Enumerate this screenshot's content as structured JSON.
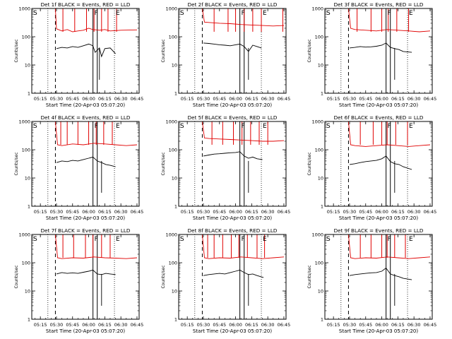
{
  "x_tick_labels": [
    "05:15",
    "05:30",
    "05:45",
    "06:00",
    "06:15",
    "06:30",
    "06:45"
  ],
  "y_tick_labels": [
    "1",
    "10",
    "100",
    "1000"
  ],
  "colors": {
    "events": "#000000",
    "lld": "#e00000",
    "axes": "#000000",
    "background": "#ffffff"
  },
  "chart_data": [
    {
      "type": "line",
      "title": "Det 1f  BLACK = Events, RED = LLD",
      "xlabel": "Start Time (20-Apr-03 05:07:20)",
      "ylabel": "Counts/sec",
      "yscale": "log",
      "ylim": [
        1,
        1000
      ],
      "xlim": [
        "05:07",
        "06:47"
      ],
      "markers": {
        "S": "05:07",
        "F": "06:04",
        "E": "06:24"
      },
      "vlines_dotted": [
        "05:22",
        "06:24"
      ],
      "vlines_dashed": [
        "05:29"
      ],
      "vlines_solid": [
        "06:04",
        "06:08"
      ],
      "series": [
        {
          "name": "Events",
          "color": "#000000",
          "x": [
            "05:30",
            "05:35",
            "05:40",
            "05:45",
            "05:50",
            "05:55",
            "06:00",
            "06:02",
            "06:04",
            "06:06",
            "06:10",
            "06:12",
            "06:15",
            "06:20",
            "06:25"
          ],
          "y": [
            38,
            42,
            40,
            45,
            42,
            48,
            55,
            52,
            47,
            28,
            40,
            20,
            38,
            40,
            25
          ]
        },
        {
          "name": "LLD",
          "color": "#e00000",
          "x": [
            "05:29",
            "05:30",
            "05:35",
            "05:40",
            "05:45",
            "05:50",
            "05:55",
            "06:00",
            "06:04",
            "06:10",
            "06:15",
            "06:20",
            "06:30",
            "06:45"
          ],
          "y": [
            1000,
            190,
            160,
            180,
            150,
            160,
            170,
            200,
            180,
            170,
            180,
            160,
            170,
            175
          ],
          "spikes": [
            "05:36",
            "05:47",
            "05:58",
            "06:05",
            "06:12",
            "06:18",
            "06:26"
          ]
        }
      ]
    },
    {
      "type": "line",
      "title": "Det 2f  BLACK = Events, RED = LLD",
      "xlabel": "Start Time (20-Apr-03 05:07:20)",
      "ylabel": "Counts/sec",
      "yscale": "log",
      "ylim": [
        1,
        1000
      ],
      "xlim": [
        "05:07",
        "06:47"
      ],
      "markers": {
        "S": "05:07",
        "F": "06:04",
        "E": "06:24"
      },
      "vlines_dotted": [
        "05:22",
        "06:24"
      ],
      "vlines_dashed": [
        "05:29"
      ],
      "vlines_solid": [
        "06:04",
        "06:08"
      ],
      "series": [
        {
          "name": "Events",
          "color": "#000000",
          "x": [
            "05:30",
            "05:35",
            "05:40",
            "05:45",
            "05:50",
            "05:55",
            "06:00",
            "06:04",
            "06:08",
            "06:12",
            "06:16",
            "06:20",
            "06:24"
          ],
          "y": [
            60,
            58,
            55,
            52,
            50,
            48,
            52,
            55,
            45,
            30,
            50,
            45,
            40
          ]
        },
        {
          "name": "LLD",
          "color": "#e00000",
          "x": [
            "05:29",
            "05:31",
            "05:35",
            "05:45",
            "05:55",
            "06:05",
            "06:15",
            "06:25",
            "06:35",
            "06:45"
          ],
          "y": [
            1000,
            330,
            320,
            300,
            290,
            270,
            260,
            250,
            240,
            250
          ],
          "spikes": [
            "05:40",
            "05:53",
            "06:00",
            "06:08",
            "06:16",
            "06:24",
            "06:44"
          ]
        }
      ]
    },
    {
      "type": "line",
      "title": "Det 3f  BLACK = Events, RED = LLD",
      "xlabel": "Start Time (20-Apr-03 05:07:20)",
      "ylabel": "Counts/sec",
      "yscale": "log",
      "ylim": [
        1,
        1000
      ],
      "xlim": [
        "05:07",
        "06:47"
      ],
      "markers": {
        "S": "05:07",
        "F": "06:04",
        "E": "06:24"
      },
      "vlines_dotted": [
        "05:22",
        "06:24"
      ],
      "vlines_dashed": [
        "05:29"
      ],
      "vlines_solid": [
        "06:04",
        "06:08"
      ],
      "series": [
        {
          "name": "Events",
          "color": "#000000",
          "x": [
            "05:30",
            "05:35",
            "05:40",
            "05:45",
            "05:50",
            "05:55",
            "06:00",
            "06:04",
            "06:08",
            "06:12",
            "06:16",
            "06:20",
            "06:28"
          ],
          "y": [
            40,
            42,
            45,
            43,
            44,
            46,
            50,
            60,
            42,
            38,
            35,
            30,
            28
          ]
        },
        {
          "name": "LLD",
          "color": "#e00000",
          "x": [
            "05:29",
            "05:31",
            "05:35",
            "05:45",
            "05:55",
            "06:05",
            "06:15",
            "06:25",
            "06:35",
            "06:45"
          ],
          "y": [
            1000,
            200,
            180,
            170,
            160,
            180,
            170,
            160,
            150,
            160
          ],
          "spikes": [
            "05:37",
            "05:50",
            "06:00",
            "06:06",
            "06:14",
            "06:25"
          ]
        }
      ]
    },
    {
      "type": "line",
      "title": "Det 4f  BLACK = Events, RED = LLD",
      "xlabel": "Start Time (20-Apr-03 05:07:20)",
      "ylabel": "Counts/sec",
      "yscale": "log",
      "ylim": [
        1,
        1000
      ],
      "xlim": [
        "05:07",
        "06:47"
      ],
      "markers": {
        "S": "05:07",
        "F": "06:04",
        "E": "06:24"
      },
      "vlines_dotted": [
        "05:22",
        "06:24"
      ],
      "vlines_dashed": [
        "05:29"
      ],
      "vlines_solid": [
        "06:04",
        "06:08"
      ],
      "series": [
        {
          "name": "Events",
          "color": "#000000",
          "x": [
            "05:30",
            "05:35",
            "05:40",
            "05:45",
            "05:50",
            "05:55",
            "06:00",
            "06:04",
            "06:08",
            "06:12",
            "06:16",
            "06:20",
            "06:25"
          ],
          "y": [
            35,
            40,
            38,
            42,
            40,
            45,
            50,
            55,
            40,
            35,
            30,
            28,
            25
          ]
        },
        {
          "name": "LLD",
          "color": "#e00000",
          "x": [
            "05:29",
            "05:31",
            "05:35",
            "05:45",
            "05:55",
            "06:05",
            "06:15",
            "06:25",
            "06:35",
            "06:45"
          ],
          "y": [
            1000,
            150,
            140,
            160,
            150,
            170,
            160,
            150,
            140,
            150
          ],
          "spikes": [
            "05:34",
            "05:40",
            "05:50",
            "06:00",
            "06:07",
            "06:14",
            "06:22"
          ]
        }
      ]
    },
    {
      "type": "line",
      "title": "Det 5f  BLACK = Events, RED = LLD",
      "xlabel": "Start Time (20-Apr-03 05:07:20)",
      "ylabel": "Counts/sec",
      "yscale": "log",
      "ylim": [
        1,
        1000
      ],
      "xlim": [
        "05:07",
        "06:47"
      ],
      "markers": {
        "S": "05:07",
        "F": "06:04",
        "E": "06:24"
      },
      "vlines_dotted": [
        "05:22",
        "06:24"
      ],
      "vlines_dashed": [
        "05:29"
      ],
      "vlines_solid": [
        "06:04",
        "06:08"
      ],
      "series": [
        {
          "name": "Events",
          "color": "#000000",
          "x": [
            "05:30",
            "05:35",
            "05:40",
            "05:45",
            "05:50",
            "05:55",
            "06:00",
            "06:04",
            "06:08",
            "06:12",
            "06:16",
            "06:20",
            "06:25"
          ],
          "y": [
            60,
            65,
            70,
            72,
            75,
            78,
            80,
            85,
            60,
            50,
            55,
            48,
            45
          ]
        },
        {
          "name": "LLD",
          "color": "#e00000",
          "x": [
            "05:29",
            "05:31",
            "05:35",
            "05:45",
            "05:55",
            "06:05",
            "06:15",
            "06:25",
            "06:35",
            "06:45"
          ],
          "y": [
            1000,
            260,
            250,
            240,
            230,
            220,
            210,
            200,
            200,
            210
          ],
          "spikes": [
            "05:38",
            "05:48",
            "05:58",
            "06:06",
            "06:14",
            "06:22",
            "06:30"
          ]
        }
      ]
    },
    {
      "type": "line",
      "title": "Det 6f  BLACK = Events, RED = LLD",
      "xlabel": "Start Time (20-Apr-03 05:07:20)",
      "ylabel": "Counts/sec",
      "yscale": "log",
      "ylim": [
        1,
        1000
      ],
      "xlim": [
        "05:07",
        "06:47"
      ],
      "markers": {
        "S": "05:07",
        "F": "06:04",
        "E": "06:24"
      },
      "vlines_dotted": [
        "05:22",
        "06:24"
      ],
      "vlines_dashed": [
        "05:29"
      ],
      "vlines_solid": [
        "06:04",
        "06:08"
      ],
      "series": [
        {
          "name": "Events",
          "color": "#000000",
          "x": [
            "05:30",
            "05:35",
            "05:40",
            "05:45",
            "05:50",
            "05:55",
            "06:00",
            "06:04",
            "06:08",
            "06:12",
            "06:16",
            "06:20",
            "06:28"
          ],
          "y": [
            30,
            32,
            35,
            38,
            40,
            42,
            48,
            60,
            38,
            32,
            30,
            25,
            20
          ]
        },
        {
          "name": "LLD",
          "color": "#e00000",
          "x": [
            "05:29",
            "05:31",
            "05:35",
            "05:45",
            "05:55",
            "06:05",
            "06:15",
            "06:25",
            "06:35",
            "06:45"
          ],
          "y": [
            1000,
            150,
            140,
            130,
            140,
            150,
            140,
            130,
            140,
            150
          ],
          "spikes": [
            "05:40",
            "05:52",
            "06:00",
            "06:05",
            "06:13",
            "06:24"
          ]
        }
      ]
    },
    {
      "type": "line",
      "title": "Det 7f  BLACK = Events, RED = LLD",
      "xlabel": "Start Time (20-Apr-03 05:07:20)",
      "ylabel": "Counts/sec",
      "yscale": "log",
      "ylim": [
        1,
        1000
      ],
      "xlim": [
        "05:07",
        "06:47"
      ],
      "markers": {
        "S": "05:07",
        "F": "06:04",
        "E": "06:24"
      },
      "vlines_dotted": [
        "05:22",
        "06:24"
      ],
      "vlines_dashed": [
        "05:29"
      ],
      "vlines_solid": [
        "06:04",
        "06:08"
      ],
      "series": [
        {
          "name": "Events",
          "color": "#000000",
          "x": [
            "05:30",
            "05:35",
            "05:40",
            "05:45",
            "05:50",
            "05:55",
            "06:00",
            "06:04",
            "06:08",
            "06:12",
            "06:16",
            "06:20",
            "06:25"
          ],
          "y": [
            40,
            45,
            42,
            44,
            42,
            46,
            50,
            55,
            40,
            38,
            42,
            40,
            38
          ]
        },
        {
          "name": "LLD",
          "color": "#e00000",
          "x": [
            "05:29",
            "05:31",
            "05:35",
            "05:45",
            "05:55",
            "06:05",
            "06:15",
            "06:25",
            "06:35",
            "06:45"
          ],
          "y": [
            1000,
            150,
            140,
            150,
            145,
            160,
            150,
            145,
            140,
            150
          ],
          "spikes": [
            "05:36",
            "05:46",
            "05:57",
            "06:04",
            "06:12",
            "06:20"
          ]
        }
      ]
    },
    {
      "type": "line",
      "title": "Det 8f  BLACK = Events, RED = LLD",
      "xlabel": "Start Time (20-Apr-03 05:07:20)",
      "ylabel": "Counts/sec",
      "yscale": "log",
      "ylim": [
        1,
        1000
      ],
      "xlim": [
        "05:07",
        "06:47"
      ],
      "markers": {
        "S": "05:07",
        "F": "06:04",
        "E": "06:24"
      },
      "vlines_dotted": [
        "05:22",
        "06:24"
      ],
      "vlines_dashed": [
        "05:29"
      ],
      "vlines_solid": [
        "06:04",
        "06:08"
      ],
      "series": [
        {
          "name": "Events",
          "color": "#000000",
          "x": [
            "05:30",
            "05:35",
            "05:40",
            "05:45",
            "05:50",
            "05:55",
            "06:00",
            "06:04",
            "06:08",
            "06:12",
            "06:16",
            "06:20",
            "06:26"
          ],
          "y": [
            35,
            38,
            40,
            42,
            40,
            45,
            50,
            55,
            45,
            38,
            40,
            35,
            30
          ]
        },
        {
          "name": "LLD",
          "color": "#e00000",
          "x": [
            "05:29",
            "05:31",
            "05:35",
            "05:45",
            "05:55",
            "06:05",
            "06:15",
            "06:25",
            "06:35",
            "06:45"
          ],
          "y": [
            1000,
            150,
            140,
            150,
            145,
            160,
            150,
            140,
            150,
            160
          ],
          "spikes": [
            "05:34",
            "05:40",
            "05:48",
            "05:56",
            "06:03",
            "06:11",
            "06:20",
            "06:27"
          ]
        }
      ]
    },
    {
      "type": "line",
      "title": "Det 9f  BLACK = Events, RED = LLD",
      "xlabel": "Start Time (20-Apr-03 05:07:20)",
      "ylabel": "Counts/sec",
      "yscale": "log",
      "ylim": [
        1,
        1000
      ],
      "xlim": [
        "05:07",
        "06:47"
      ],
      "markers": {
        "S": "05:07",
        "F": "06:04",
        "E": "06:24"
      },
      "vlines_dotted": [
        "05:22",
        "06:24"
      ],
      "vlines_dashed": [
        "05:29"
      ],
      "vlines_solid": [
        "06:04",
        "06:08"
      ],
      "series": [
        {
          "name": "Events",
          "color": "#000000",
          "x": [
            "05:30",
            "05:35",
            "05:40",
            "05:45",
            "05:50",
            "05:55",
            "06:00",
            "06:04",
            "06:08",
            "06:12",
            "06:16",
            "06:20",
            "06:28"
          ],
          "y": [
            35,
            38,
            40,
            42,
            44,
            45,
            50,
            65,
            40,
            35,
            32,
            28,
            25
          ]
        },
        {
          "name": "LLD",
          "color": "#e00000",
          "x": [
            "05:29",
            "05:31",
            "05:35",
            "05:45",
            "05:55",
            "06:05",
            "06:15",
            "06:25",
            "06:35",
            "06:45"
          ],
          "y": [
            1000,
            150,
            140,
            150,
            145,
            160,
            150,
            140,
            150,
            160
          ],
          "spikes": [
            "05:40",
            "05:50",
            "06:00",
            "06:05",
            "06:12",
            "06:22"
          ]
        }
      ]
    }
  ]
}
